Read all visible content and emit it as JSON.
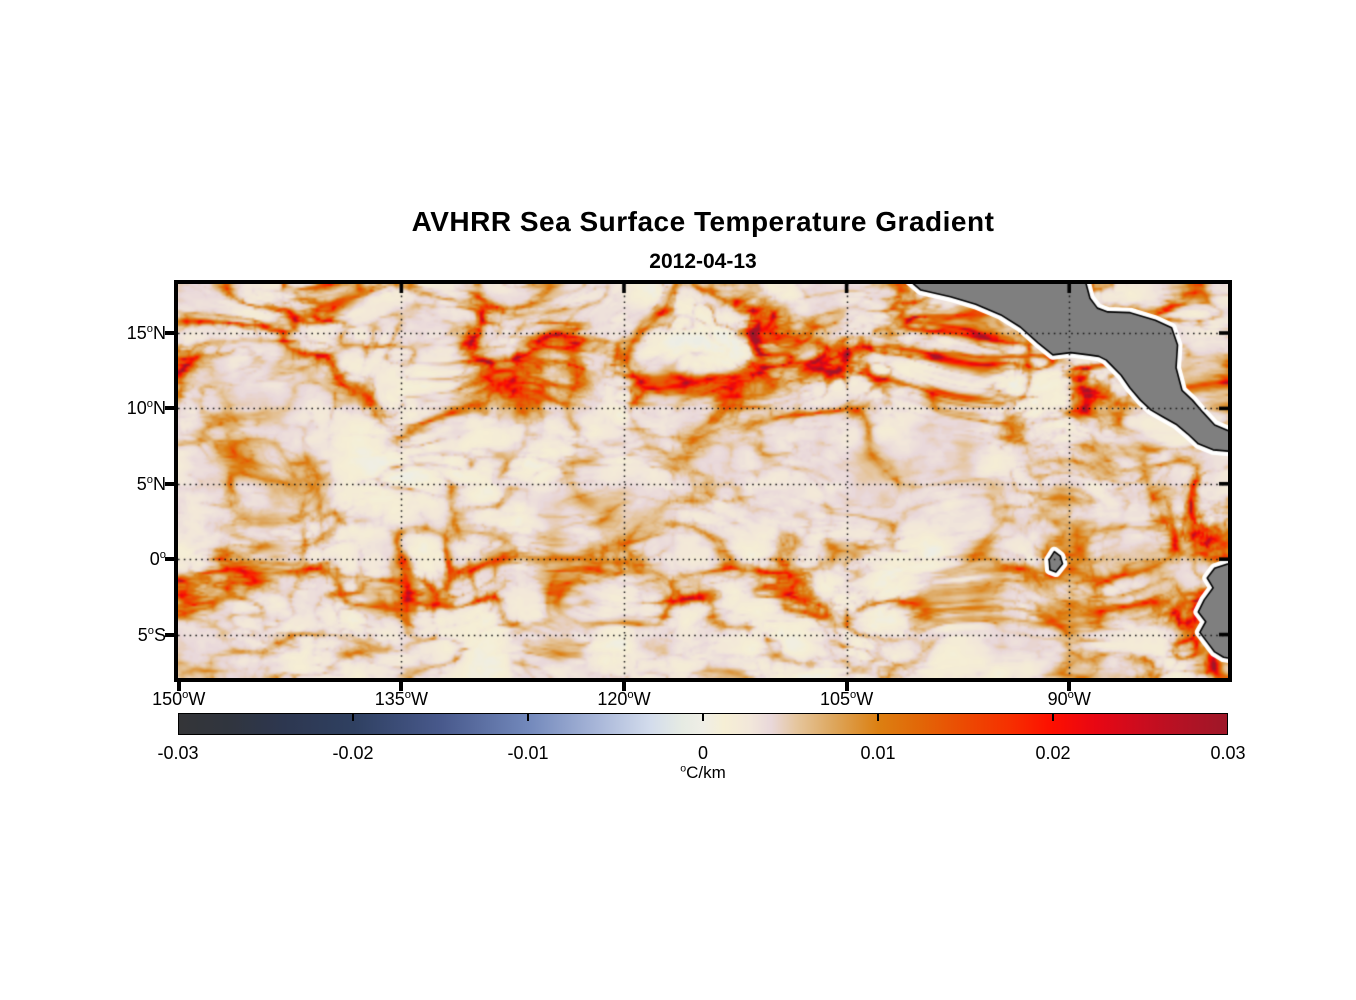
{
  "chart_data": {
    "type": "heatmap",
    "title": "AVHRR Sea Surface Temperature Gradient",
    "subtitle": "2012-04-13",
    "extent": {
      "lon_min": -150.05,
      "lon_max": -79.3,
      "lat_min": -7.88,
      "lat_max": 18.25
    },
    "x_axis": {
      "tick_lons": [
        -150,
        -135,
        -120,
        -105,
        -90
      ],
      "tick_labels": [
        {
          "value": "150",
          "sup": "o",
          "suffix": "W"
        },
        {
          "value": "135",
          "sup": "o",
          "suffix": "W"
        },
        {
          "value": "120",
          "sup": "o",
          "suffix": "W"
        },
        {
          "value": "105",
          "sup": "o",
          "suffix": "W"
        },
        {
          "value": "90",
          "sup": "o",
          "suffix": "W"
        }
      ]
    },
    "y_axis": {
      "tick_lats": [
        15,
        10,
        5,
        0,
        -5
      ],
      "tick_labels": [
        {
          "value": "15",
          "sup": "o",
          "suffix": "N"
        },
        {
          "value": "10",
          "sup": "o",
          "suffix": "N"
        },
        {
          "value": "5",
          "sup": "o",
          "suffix": "N"
        },
        {
          "value": "0",
          "sup": "o",
          "suffix": ""
        },
        {
          "value": "5",
          "sup": "o",
          "suffix": "S"
        }
      ]
    },
    "grid": {
      "style": "dotted",
      "color": "#1c1c1c"
    },
    "colorbar": {
      "orientation": "horizontal",
      "range_min": -0.03,
      "range_max": 0.03,
      "tick_values": [
        -0.03,
        -0.02,
        -0.01,
        0,
        0.01,
        0.02,
        0.03
      ],
      "tick_labels": [
        "-0.03",
        "-0.02",
        "-0.01",
        "0",
        "0.01",
        "0.02",
        "0.03"
      ],
      "unit_sup": "o",
      "unit": "C/km",
      "colormap_stops": [
        [
          0.0,
          "#343538"
        ],
        [
          0.05,
          "#30353f"
        ],
        [
          0.1,
          "#2d3750"
        ],
        [
          0.167,
          "#2f4061"
        ],
        [
          0.25,
          "#48598c"
        ],
        [
          0.333,
          "#7288bb"
        ],
        [
          0.4,
          "#a9b7d9"
        ],
        [
          0.45,
          "#d3dcec"
        ],
        [
          0.48,
          "#e6ebe3"
        ],
        [
          0.5,
          "#efeee6"
        ],
        [
          0.52,
          "#f6efd5"
        ],
        [
          0.545,
          "#f2e7da"
        ],
        [
          0.565,
          "#e9d8da"
        ],
        [
          0.59,
          "#e5c59c"
        ],
        [
          0.625,
          "#dda65c"
        ],
        [
          0.667,
          "#dc8012"
        ],
        [
          0.708,
          "#e26607"
        ],
        [
          0.75,
          "#ec4a02"
        ],
        [
          0.792,
          "#f63000"
        ],
        [
          0.833,
          "#fd0f00"
        ],
        [
          0.875,
          "#e80713"
        ],
        [
          0.917,
          "#cc0c1e"
        ],
        [
          0.958,
          "#b31224"
        ],
        [
          1.0,
          "#9e1728"
        ]
      ]
    },
    "land": {
      "fill": "#7f7f7f",
      "outline": "#000000",
      "coastal_halo": "#ffffff",
      "polygons": [
        [
          [
            -102.0,
            19.5
          ],
          [
            -100.0,
            17.85
          ],
          [
            -98.0,
            17.4
          ],
          [
            -96.3,
            16.9
          ],
          [
            -94.6,
            16.2
          ],
          [
            -93.3,
            15.4
          ],
          [
            -92.1,
            14.35
          ],
          [
            -91.1,
            13.55
          ],
          [
            -89.9,
            13.7
          ],
          [
            -88.7,
            13.55
          ],
          [
            -88.0,
            13.45
          ],
          [
            -87.5,
            13.2
          ],
          [
            -87.1,
            12.8
          ],
          [
            -86.5,
            12.2
          ],
          [
            -85.9,
            11.35
          ],
          [
            -85.2,
            10.55
          ],
          [
            -84.5,
            9.9
          ],
          [
            -83.7,
            9.45
          ],
          [
            -82.8,
            8.95
          ],
          [
            -82.0,
            8.3
          ],
          [
            -81.3,
            7.65
          ],
          [
            -80.3,
            7.25
          ],
          [
            -78.5,
            7.1
          ],
          [
            -78.5,
            8.2
          ],
          [
            -80.2,
            8.9
          ],
          [
            -81.0,
            9.75
          ],
          [
            -81.7,
            10.55
          ],
          [
            -82.4,
            11.2
          ],
          [
            -82.8,
            12.7
          ],
          [
            -82.7,
            14.2
          ],
          [
            -83.1,
            15.35
          ],
          [
            -84.2,
            15.85
          ],
          [
            -85.9,
            16.35
          ],
          [
            -87.4,
            16.4
          ],
          [
            -88.1,
            16.65
          ],
          [
            -88.6,
            17.3
          ],
          [
            -89.2,
            19.5
          ]
        ],
        [
          [
            -78.5,
            -0.05
          ],
          [
            -80.2,
            -0.6
          ],
          [
            -80.7,
            -1.25
          ],
          [
            -80.3,
            -1.9
          ],
          [
            -80.9,
            -2.7
          ],
          [
            -81.3,
            -3.5
          ],
          [
            -80.8,
            -4.15
          ],
          [
            -81.2,
            -4.85
          ],
          [
            -80.7,
            -5.5
          ],
          [
            -80.2,
            -6.15
          ],
          [
            -79.6,
            -6.5
          ],
          [
            -78.5,
            -6.7
          ]
        ],
        [
          [
            -91.35,
            -0.05
          ],
          [
            -91.0,
            0.5
          ],
          [
            -90.6,
            0.2
          ],
          [
            -90.45,
            -0.3
          ],
          [
            -90.9,
            -0.85
          ],
          [
            -91.3,
            -0.7
          ]
        ]
      ]
    },
    "field_synthesis": {
      "seed": 7,
      "background_level": 0.002,
      "features": [
        {
          "name": "north-equatorial-front",
          "kind": "lat-band",
          "lat": 14.0,
          "lat_sigma": 3.6,
          "strength": 1.0,
          "patchy": 0.5
        },
        {
          "name": "equatorial-front",
          "kind": "lat-band",
          "lat": -1.9,
          "lat_sigma": 2.1,
          "strength": 0.62,
          "patchy": 0.45
        },
        {
          "name": "equatorial-front-west-lobe",
          "kind": "blob",
          "lon": -137,
          "lat": -1.9,
          "lon_sigma": 13,
          "lat_sigma": 2.2,
          "strength": 0.88
        },
        {
          "name": "south-america-coastal-upwelling",
          "kind": "lon-band",
          "lon": -80.3,
          "lon_sigma": 3.2,
          "lat_max": 4,
          "strength": 1.0
        },
        {
          "name": "tehuantepec-jet",
          "kind": "blob",
          "lon": -95.5,
          "lat": 13.6,
          "lon_sigma": 2.6,
          "lat_sigma": 2.1,
          "strength": 1.15
        },
        {
          "name": "papagayo-jet",
          "kind": "blob",
          "lon": -88.5,
          "lat": 11.0,
          "lon_sigma": 2.4,
          "lat_sigma": 1.9,
          "strength": 0.95
        },
        {
          "name": "mexico-coastal",
          "kind": "blob",
          "lon": -101.0,
          "lat": 16.8,
          "lon_sigma": 5.0,
          "lat_sigma": 2.2,
          "strength": 0.7
        }
      ]
    }
  }
}
